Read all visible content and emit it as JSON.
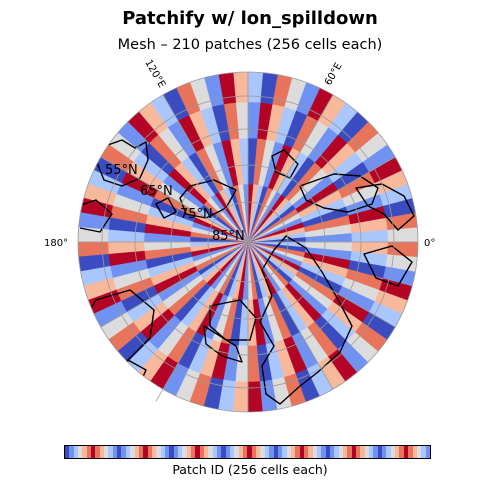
{
  "title": "Patchify w/ lon_spilldown",
  "subtitle": "Mesh – 210 patches (256 cells each)",
  "colorbar_label": "Patch ID (256 cells each)",
  "colormap": [
    "#3b4cc0",
    "#6f92f3",
    "#aac7fd",
    "#dddcdc",
    "#f7b89c",
    "#e7745b",
    "#b40426"
  ],
  "chart_data": {
    "type": "heatmap",
    "projection": "north-polar-stereographic",
    "title": "Patchify w/ lon_spilldown",
    "subtitle": "Mesh – 210 patches (256 cells each)",
    "colorbar_label": "Patch ID (256 cells each)",
    "n_patches": 210,
    "cells_per_patch": 256,
    "latitude_rings": [
      "55°N",
      "65°N",
      "75°N",
      "85°N"
    ],
    "meridian_labels": [
      "120°E",
      "60°E",
      "180°",
      "0°"
    ]
  }
}
